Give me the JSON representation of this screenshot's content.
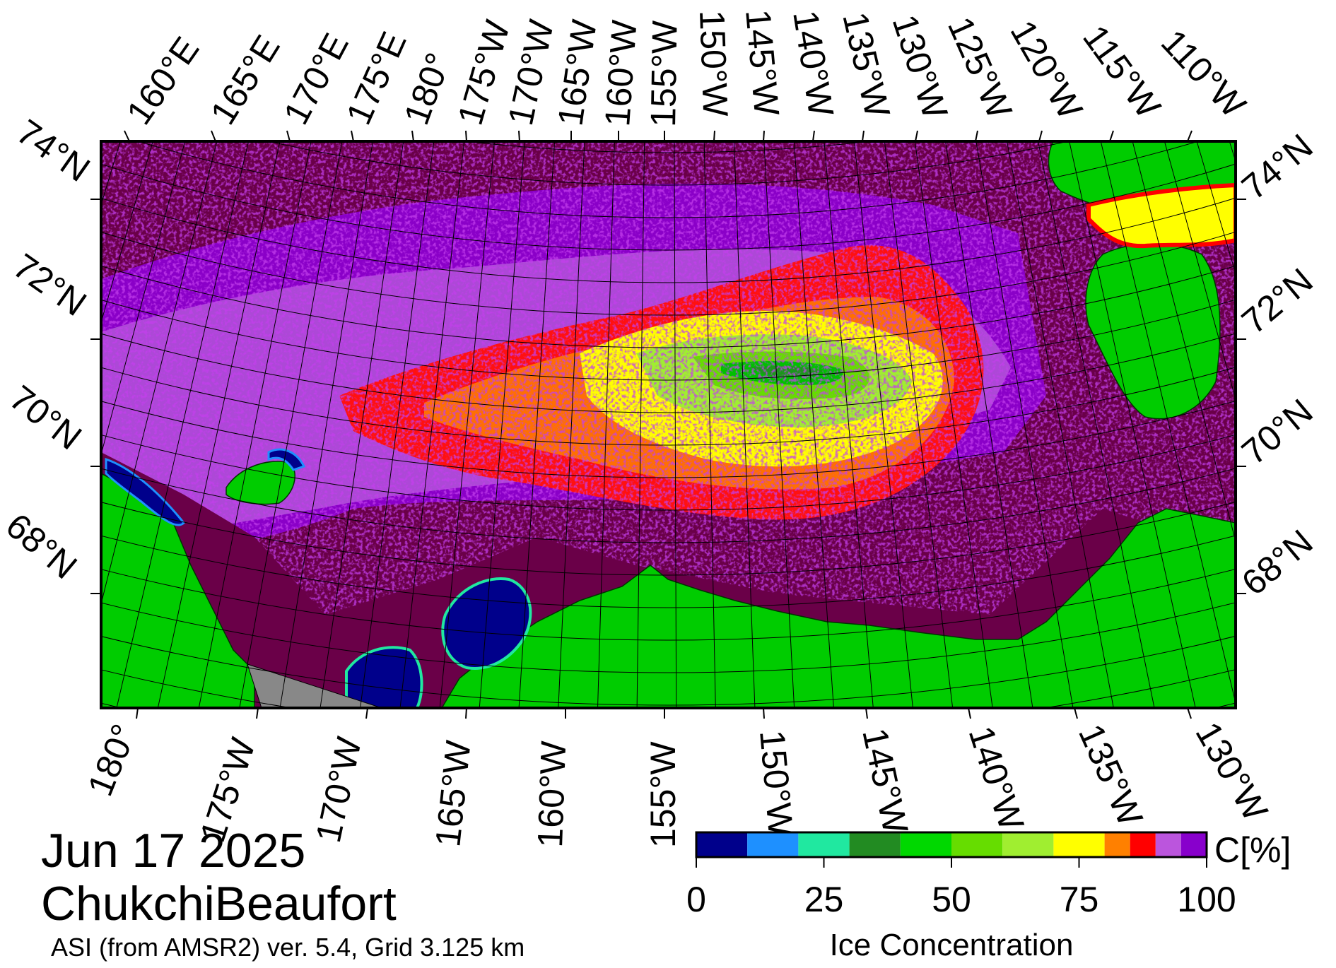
{
  "map": {
    "date": "Jun 17 2025",
    "region": "ChukchiBeaufort",
    "product": "ASI (from AMSR2) ver. 5.4,  Grid 3.125 km",
    "top_lon_labels": [
      "160°E",
      "165°E",
      "170°E",
      "175°E",
      "180°",
      "175°W",
      "170°W",
      "165°W",
      "160°W",
      "155°W",
      "150°W",
      "145°W",
      "140°W",
      "135°W",
      "130°W",
      "125°W",
      "120°W",
      "115°W",
      "110°W"
    ],
    "bottom_lon_labels": [
      "180°",
      "175°W",
      "170°W",
      "165°W",
      "160°W",
      "155°W",
      "150°W",
      "145°W",
      "140°W",
      "135°W",
      "130°W"
    ],
    "left_lat_labels": [
      "74°N",
      "72°N",
      "70°N",
      "68°N"
    ],
    "right_lat_labels": [
      "74°N",
      "72°N",
      "70°N",
      "68°N"
    ],
    "colors": {
      "land": "#00cc00",
      "open_water": "#6a0048",
      "no_data": "#888888",
      "frame": "#000000"
    }
  },
  "colorbar": {
    "title": "Ice Concentration",
    "unit": "C[%]",
    "ticks": [
      "0",
      "25",
      "50",
      "75",
      "100"
    ],
    "range": [
      0,
      100
    ],
    "bins": [
      {
        "from": 0,
        "to": 10,
        "color": "#00008b"
      },
      {
        "from": 10,
        "to": 20,
        "color": "#1e90ff"
      },
      {
        "from": 20,
        "to": 30,
        "color": "#20e8a0"
      },
      {
        "from": 30,
        "to": 40,
        "color": "#228b22"
      },
      {
        "from": 40,
        "to": 50,
        "color": "#00d800"
      },
      {
        "from": 50,
        "to": 60,
        "color": "#66dd00"
      },
      {
        "from": 60,
        "to": 70,
        "color": "#a0ee30"
      },
      {
        "from": 70,
        "to": 80,
        "color": "#ffff00"
      },
      {
        "from": 80,
        "to": 85,
        "color": "#ff8000"
      },
      {
        "from": 85,
        "to": 90,
        "color": "#ff0000"
      },
      {
        "from": 90,
        "to": 95,
        "color": "#bb55dd"
      },
      {
        "from": 95,
        "to": 100,
        "color": "#8800cc"
      }
    ]
  }
}
